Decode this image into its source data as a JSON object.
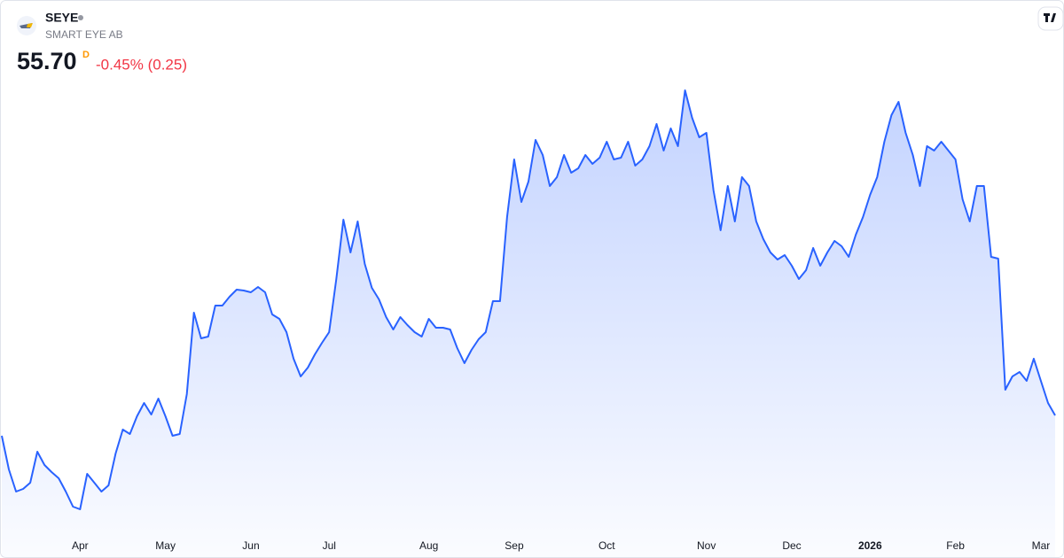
{
  "header": {
    "ticker": "SEYE",
    "name": "SMART EYE AB",
    "price": "55.70",
    "interval": "D",
    "change": "-0.45% (0.25)"
  },
  "chart_data": {
    "type": "area",
    "color": "#2962ff",
    "categories": [
      null,
      null,
      null,
      null,
      null,
      null,
      null,
      null,
      null,
      null,
      null,
      "Apr",
      null,
      null,
      null,
      null,
      null,
      null,
      null,
      null,
      null,
      null,
      null,
      "May",
      null,
      null,
      null,
      null,
      null,
      null,
      null,
      null,
      null,
      null,
      null,
      "Jun",
      null,
      null,
      null,
      null,
      null,
      null,
      null,
      null,
      null,
      null,
      "Jul",
      null,
      null,
      null,
      null,
      null,
      null,
      null,
      null,
      null,
      null,
      null,
      null,
      null,
      "Aug",
      null,
      null,
      null,
      null,
      null,
      null,
      null,
      null,
      null,
      null,
      null,
      "Sep",
      null,
      null,
      null,
      null,
      null,
      null,
      null,
      null,
      null,
      null,
      null,
      null,
      "Oct",
      null,
      null,
      null,
      null,
      null,
      null,
      null,
      null,
      null,
      null,
      null,
      null,
      null,
      "Nov",
      null,
      null,
      null,
      null,
      null,
      null,
      null,
      null,
      null,
      null,
      null,
      "Dec",
      null,
      null,
      null,
      null,
      null,
      null,
      null,
      null,
      null,
      null,
      "2026",
      null,
      null,
      null,
      null,
      null,
      null,
      null,
      null,
      null,
      null,
      null,
      "Feb",
      null,
      null,
      null,
      null,
      null,
      null,
      null,
      null,
      null,
      null,
      null,
      "Mar",
      null,
      null
    ],
    "values": [
      53.4,
      49.6,
      47.1,
      47.4,
      48.1,
      51.6,
      50.1,
      49.3,
      48.6,
      47.1,
      45.4,
      45.1,
      49.1,
      48.1,
      47.1,
      47.8,
      51.4,
      54.1,
      53.6,
      55.6,
      57.1,
      55.8,
      57.6,
      55.6,
      53.4,
      53.6,
      58.1,
      67.3,
      64.4,
      64.6,
      68.1,
      68.1,
      69.1,
      69.9,
      69.8,
      69.6,
      70.2,
      69.6,
      67.1,
      66.6,
      65.1,
      62.1,
      60.1,
      61.1,
      62.6,
      63.9,
      65.1,
      71.1,
      77.8,
      74.1,
      77.6,
      72.8,
      70.1,
      68.8,
      66.8,
      65.4,
      66.8,
      65.9,
      65.1,
      64.6,
      66.6,
      65.6,
      65.6,
      65.4,
      63.3,
      61.6,
      63.1,
      64.3,
      65.1,
      68.6,
      68.6,
      78.1,
      84.6,
      79.8,
      82.1,
      86.8,
      85.1,
      81.6,
      82.6,
      85.1,
      83.1,
      83.6,
      85.1,
      84.1,
      84.8,
      86.6,
      84.6,
      84.8,
      86.6,
      83.9,
      84.6,
      86.1,
      88.6,
      85.6,
      88.1,
      86.1,
      92.4,
      89.3,
      87.1,
      87.6,
      81.1,
      76.6,
      81.6,
      77.6,
      82.6,
      81.6,
      77.6,
      75.6,
      74.1,
      73.3,
      73.8,
      72.6,
      71.1,
      72.1,
      74.6,
      72.6,
      74.1,
      75.4,
      74.8,
      73.6,
      76.1,
      78.1,
      80.6,
      82.6,
      86.6,
      89.6,
      91.1,
      87.6,
      85.1,
      81.6,
      86.1,
      85.6,
      86.6,
      85.6,
      84.6,
      80.1,
      77.6,
      81.6,
      81.6,
      73.6,
      73.4,
      58.6,
      60.1,
      60.6,
      59.6,
      62.1,
      59.6,
      57.1,
      55.7
    ],
    "ylim": [
      42.6,
      94.6
    ]
  }
}
